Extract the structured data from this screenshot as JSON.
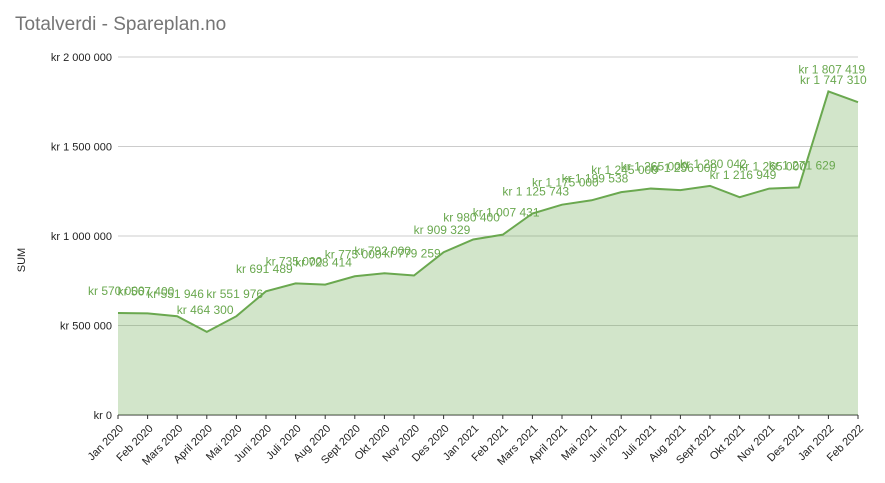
{
  "chart_data": {
    "type": "area",
    "title": "Totalverdi - Spareplan.no",
    "y_label": "SUM",
    "categories": [
      "Jan 2020",
      "Feb 2020",
      "Mars 2020",
      "April 2020",
      "Mai 2020",
      "Juni 2020",
      "Juli 2020",
      "Aug 2020",
      "Sept 2020",
      "Okt 2020",
      "Nov 2020",
      "Des 2020",
      "Jan 2021",
      "Feb 2021",
      "Mars 2021",
      "April 2021",
      "Mai 2021",
      "Juni 2021",
      "Juli 2021",
      "Aug 2021",
      "Sept 2021",
      "Okt 2021",
      "Nov 2021",
      "Des 2021",
      "Jan 2022",
      "Feb 2022"
    ],
    "values": [
      570000,
      567400,
      551946,
      464300,
      551976,
      691489,
      735000,
      728414,
      775000,
      792000,
      779259,
      909329,
      980400,
      1007431,
      1125743,
      1175000,
      1199538,
      1245000,
      1265000,
      1256000,
      1280042,
      1216949,
      1265000,
      1271629,
      1807419,
      1747310
    ],
    "value_labels": [
      "kr 570 000",
      "kr 567 400",
      "kr 551 946",
      "kr 464 300",
      "kr 551 976",
      "kr 691 489",
      "kr 735 000",
      "kr 728 414",
      "kr 775 000",
      "kr 792 000",
      "kr 779 259",
      "kr 909 329",
      "kr 980 400",
      "kr 1 007 431",
      "kr 1 125 743",
      "kr 1 175 000",
      "kr 1 199 538",
      "kr 1 245 000",
      "kr 1 265 000",
      "kr 1 256 000",
      "kr 1 280 042",
      "kr 1 216 949",
      "kr 1 265 000",
      "kr 1 271 629",
      "kr 1 807 419",
      "kr 1 747 310"
    ],
    "color": "#6aa84f",
    "ylim": [
      0,
      2000000
    ],
    "yticks": [
      {
        "value": 0,
        "label": "kr 0"
      },
      {
        "value": 500000,
        "label": "kr 500 000"
      },
      {
        "value": 1000000,
        "label": "kr 1 000 000"
      },
      {
        "value": 1500000,
        "label": "kr 1 500 000"
      },
      {
        "value": 2000000,
        "label": "kr 2 000 000"
      }
    ],
    "grid": true
  }
}
